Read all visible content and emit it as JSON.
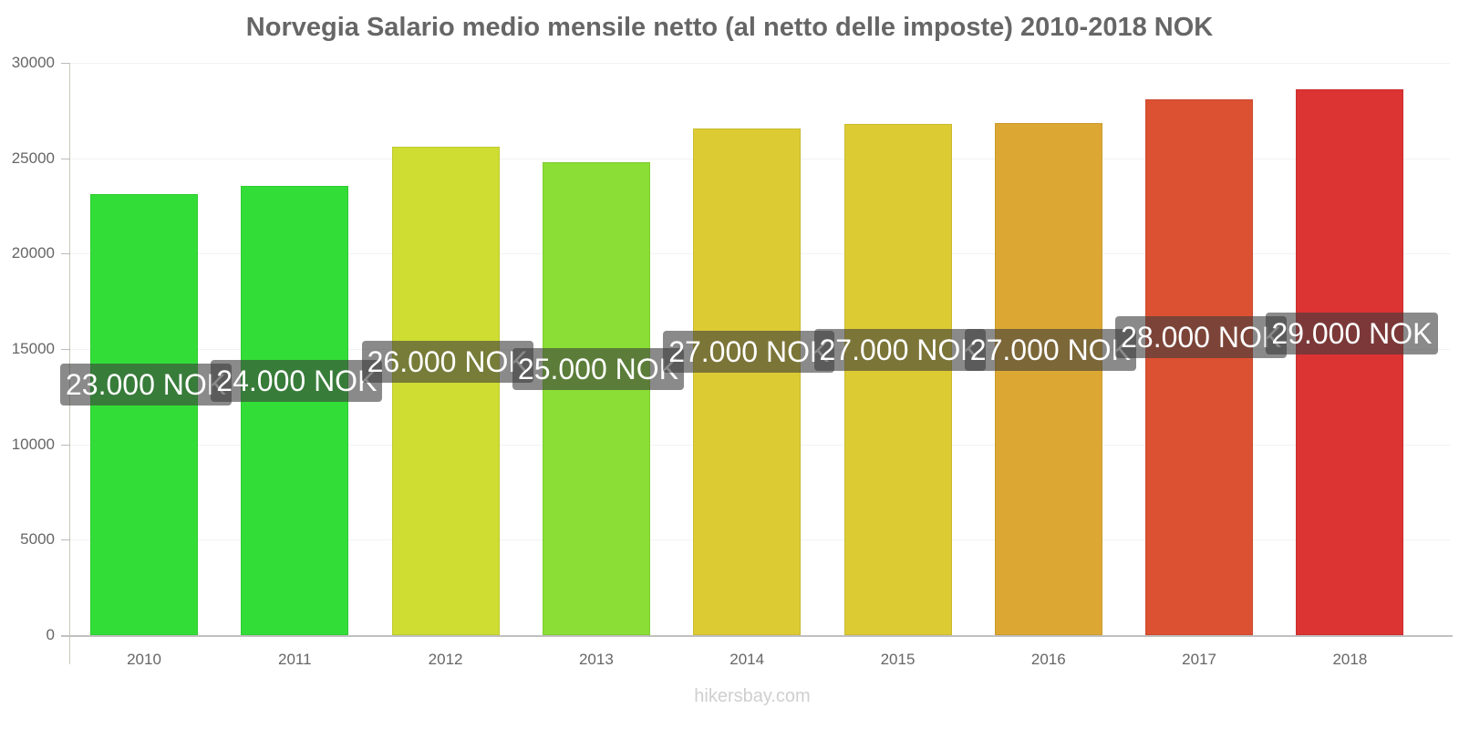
{
  "chart_data": {
    "type": "bar",
    "title": "Norvegia Salario medio mensile netto (al netto delle imposte) 2010-2018 NOK",
    "xlabel": "",
    "ylabel": "",
    "ylim": [
      0,
      30000
    ],
    "yticks": [
      "0",
      "5000",
      "10000",
      "15000",
      "20000",
      "25000",
      "30000"
    ],
    "grid": true,
    "categories": [
      "2010",
      "2011",
      "2012",
      "2013",
      "2014",
      "2015",
      "2016",
      "2017",
      "2018"
    ],
    "values": [
      23140,
      23560,
      25600,
      24790,
      26560,
      26800,
      26850,
      28090,
      28620
    ],
    "data_labels": [
      "23.000 NOK",
      "24.000 NOK",
      "26.000 NOK",
      "25.000 NOK",
      "27.000 NOK",
      "27.000 NOK",
      "27.000 NOK",
      "28.000 NOK",
      "29.000 NOK"
    ],
    "colors": [
      "#33dd38",
      "#33dd38",
      "#cfdd33",
      "#8ade35",
      "#dccb33",
      "#dccb33",
      "#dca833",
      "#dd5133",
      "#dc3333"
    ],
    "source": "hikersbay.com"
  }
}
